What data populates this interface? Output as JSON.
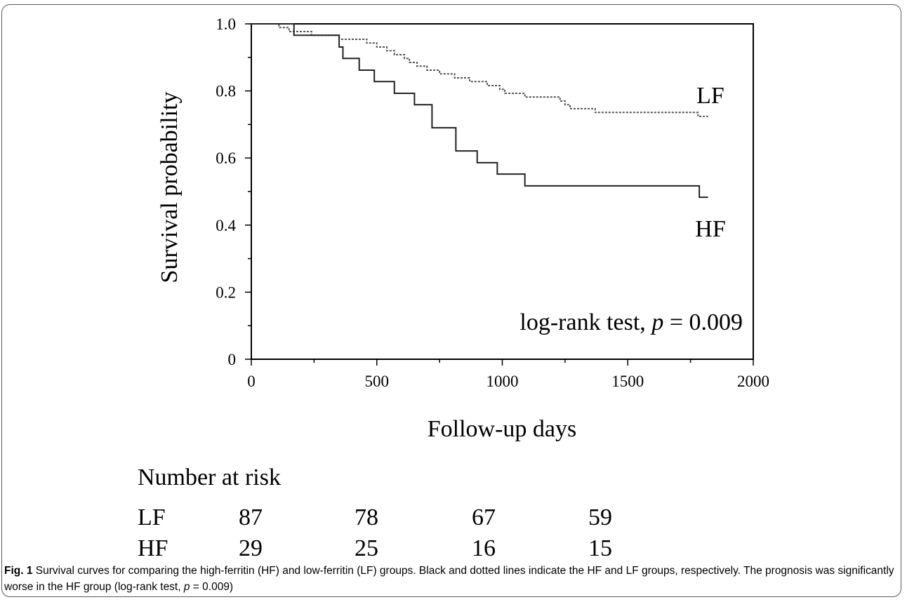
{
  "chart_data": {
    "type": "line",
    "title": "",
    "xlabel": "Follow-up days",
    "ylabel": "Survival probability",
    "xlim": [
      0,
      2000
    ],
    "ylim": [
      0,
      1.0
    ],
    "x_ticks": [
      "0",
      "500",
      "1000",
      "1500",
      "2000"
    ],
    "y_ticks": [
      "0",
      "0.2",
      "0.4",
      "0.6",
      "0.8",
      "1.0"
    ],
    "grid": false,
    "annotation": {
      "prefix": "log-rank test, ",
      "p_symbol": "p",
      "suffix": " = 0.009"
    },
    "series": [
      {
        "name": "LF",
        "style": "dotted",
        "color": "#555555",
        "points": [
          [
            0,
            1.0
          ],
          [
            110,
            0.989
          ],
          [
            150,
            0.977
          ],
          [
            240,
            0.966
          ],
          [
            350,
            0.954
          ],
          [
            460,
            0.943
          ],
          [
            500,
            0.931
          ],
          [
            540,
            0.92
          ],
          [
            570,
            0.908
          ],
          [
            610,
            0.897
          ],
          [
            630,
            0.885
          ],
          [
            660,
            0.874
          ],
          [
            700,
            0.862
          ],
          [
            750,
            0.851
          ],
          [
            810,
            0.839
          ],
          [
            870,
            0.828
          ],
          [
            940,
            0.816
          ],
          [
            990,
            0.805
          ],
          [
            1010,
            0.793
          ],
          [
            1090,
            0.782
          ],
          [
            1230,
            0.77
          ],
          [
            1250,
            0.759
          ],
          [
            1270,
            0.747
          ],
          [
            1370,
            0.736
          ],
          [
            1780,
            0.724
          ],
          [
            1820,
            0.724
          ]
        ]
      },
      {
        "name": "HF",
        "style": "solid",
        "color": "#222222",
        "points": [
          [
            0,
            1.0
          ],
          [
            170,
            0.966
          ],
          [
            350,
            0.931
          ],
          [
            365,
            0.897
          ],
          [
            430,
            0.862
          ],
          [
            490,
            0.828
          ],
          [
            570,
            0.793
          ],
          [
            650,
            0.759
          ],
          [
            720,
            0.69
          ],
          [
            815,
            0.621
          ],
          [
            900,
            0.586
          ],
          [
            980,
            0.552
          ],
          [
            1090,
            0.517
          ],
          [
            1785,
            0.483
          ],
          [
            1820,
            0.483
          ]
        ]
      }
    ],
    "risk_table": {
      "title": "Number at risk",
      "timepoints": [
        0,
        500,
        1000,
        1500
      ],
      "rows": [
        {
          "group": "LF",
          "values": [
            "87",
            "78",
            "67",
            "59"
          ]
        },
        {
          "group": "HF",
          "values": [
            "29",
            "25",
            "16",
            "15"
          ]
        }
      ]
    }
  },
  "caption": {
    "fig_label": "Fig. 1",
    "text_before_p": " Survival curves for comparing the high-ferritin (HF) and low-ferritin (LF) groups. Black and dotted lines indicate the HF and LF groups, respectively. The prognosis was significantly worse in the HF group (log-rank test, ",
    "p_symbol": "p",
    "text_after_p": " = 0.009)"
  }
}
